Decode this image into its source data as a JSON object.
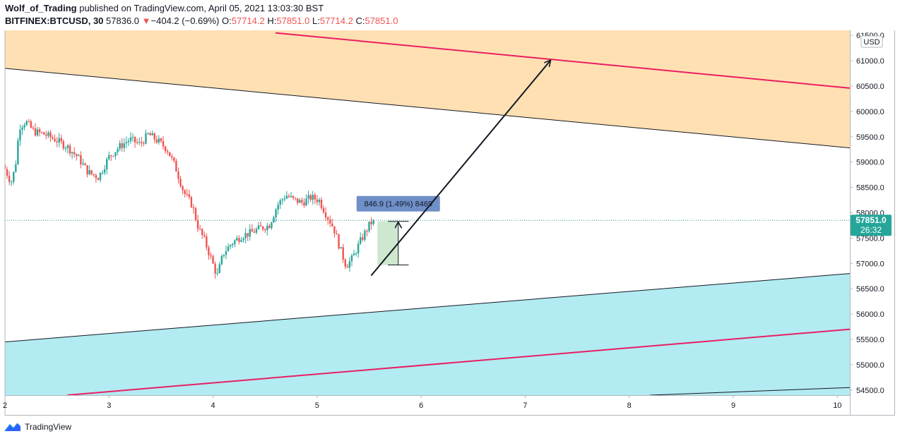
{
  "header": {
    "author": "Wolf_of_Trading",
    "published": " published on TradingView.com, April 05, 2021 13:03:30 BST",
    "symbol": "BITFINEX:BTCUSD, 30",
    "last": "57836.0",
    "change": "−404.2 (−0.69%)",
    "o_label": "O:",
    "o_value": "57714.2",
    "h_label": "H:",
    "h_value": "57851.0",
    "l_label": "L:",
    "l_value": "57714.2",
    "c_label": "C:",
    "c_value": "57851.0",
    "down_arrow": "▼"
  },
  "footer": {
    "brand": "TradingView"
  },
  "colors": {
    "up": "#26a69a",
    "down": "#ef5350",
    "zone_top": "#ffe0b2",
    "zone_bottom": "#b2ebf2",
    "median": "#e91e63",
    "badge": "#26a69a",
    "measure": "#6f8fc8"
  },
  "chart_data": {
    "type": "candlestick",
    "currency": "USD",
    "x_ticks": [
      {
        "label": "2",
        "day": 2
      },
      {
        "label": "3",
        "day": 3
      },
      {
        "label": "4",
        "day": 4
      },
      {
        "label": "5",
        "day": 5
      },
      {
        "label": "6",
        "day": 6
      },
      {
        "label": "7",
        "day": 7
      },
      {
        "label": "8",
        "day": 8
      },
      {
        "label": "9",
        "day": 9
      },
      {
        "label": "10",
        "day": 10
      }
    ],
    "xlim": [
      2.0,
      10.12
    ],
    "ylim": [
      54400,
      61600
    ],
    "y_ticks": [
      "61500.0",
      "61000.0",
      "60500.0",
      "60000.0",
      "59500.0",
      "59000.0",
      "58500.0",
      "58000.0",
      "57500.0",
      "57000.0",
      "56500.0",
      "56000.0",
      "55500.0",
      "55000.0",
      "54500.0"
    ],
    "last_price": "57851.0",
    "countdown": "26:32",
    "last_value": 57851,
    "price_path": [
      [
        2.0,
        58950
      ],
      [
        2.08,
        58600
      ],
      [
        2.12,
        58900
      ],
      [
        2.16,
        59700
      ],
      [
        2.22,
        59800
      ],
      [
        2.3,
        59600
      ],
      [
        2.4,
        59550
      ],
      [
        2.5,
        59450
      ],
      [
        2.62,
        59300
      ],
      [
        2.72,
        59100
      ],
      [
        2.82,
        58800
      ],
      [
        2.92,
        58700
      ],
      [
        3.02,
        59100
      ],
      [
        3.12,
        59300
      ],
      [
        3.22,
        59450
      ],
      [
        3.32,
        59350
      ],
      [
        3.4,
        59550
      ],
      [
        3.5,
        59400
      ],
      [
        3.58,
        59250
      ],
      [
        3.66,
        58900
      ],
      [
        3.74,
        58400
      ],
      [
        3.82,
        58150
      ],
      [
        3.88,
        57700
      ],
      [
        3.94,
        57450
      ],
      [
        4.0,
        57100
      ],
      [
        4.06,
        56750
      ],
      [
        4.12,
        57200
      ],
      [
        4.2,
        57400
      ],
      [
        4.3,
        57550
      ],
      [
        4.38,
        57600
      ],
      [
        4.48,
        57700
      ],
      [
        4.56,
        57750
      ],
      [
        4.64,
        58150
      ],
      [
        4.72,
        58350
      ],
      [
        4.8,
        58250
      ],
      [
        4.88,
        58200
      ],
      [
        4.96,
        58300
      ],
      [
        5.04,
        58250
      ],
      [
        5.1,
        58000
      ],
      [
        5.18,
        57700
      ],
      [
        5.24,
        57300
      ],
      [
        5.3,
        56950
      ],
      [
        5.36,
        57100
      ],
      [
        5.44,
        57450
      ],
      [
        5.52,
        57750
      ],
      [
        5.56,
        57851
      ]
    ],
    "channel_upper": {
      "line_a": [
        [
          2.0,
          60850
        ],
        [
          10.12,
          59280
        ]
      ],
      "median": [
        [
          4.6,
          61550
        ],
        [
          10.12,
          60460
        ]
      ]
    },
    "channel_lower": {
      "line_a": [
        [
          2.0,
          55450
        ],
        [
          10.12,
          56800
        ]
      ],
      "median": [
        [
          2.6,
          54400
        ],
        [
          10.12,
          55700
        ]
      ],
      "line_b": [
        [
          8.2,
          54400
        ],
        [
          10.12,
          54550
        ]
      ]
    },
    "arrow": {
      "from": [
        5.52,
        56760
      ],
      "to": [
        7.24,
        61000
      ]
    },
    "measure": {
      "x": 5.78,
      "from": 56970,
      "to": 57830,
      "label": "846.9 (1.49%) 8469"
    }
  }
}
